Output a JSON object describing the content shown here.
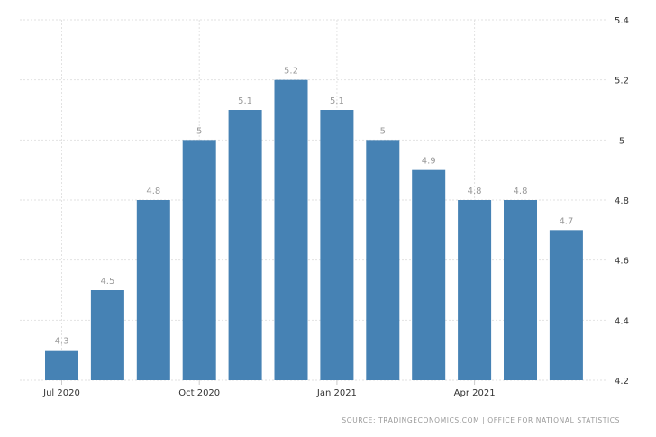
{
  "chart_data": {
    "type": "bar",
    "title": "",
    "xlabel": "",
    "ylabel": "",
    "categories": [
      "Jul 2020",
      "Aug 2020",
      "Sep 2020",
      "Oct 2020",
      "Nov 2020",
      "Dec 2020",
      "Jan 2021",
      "Feb 2021",
      "Mar 2021",
      "Apr 2021",
      "May 2021",
      "Jun 2021"
    ],
    "values": [
      4.3,
      4.5,
      4.8,
      5,
      5.1,
      5.2,
      5.1,
      5,
      4.9,
      4.8,
      4.8,
      4.7
    ],
    "data_labels": [
      "4.3",
      "4.5",
      "4.8",
      "5",
      "5.1",
      "5.2",
      "5.1",
      "5",
      "4.9",
      "4.8",
      "4.8",
      "4.7"
    ],
    "ylim": [
      4.2,
      5.4
    ],
    "yticks": [
      4.2,
      4.4,
      4.6,
      4.8,
      5,
      5.2,
      5.4
    ],
    "ytick_labels": [
      "4.2",
      "4.4",
      "4.6",
      "4.8",
      "5",
      "5.2",
      "5.4"
    ],
    "xticks": [
      {
        "index": 0,
        "label": "Jul 2020"
      },
      {
        "index": 3,
        "label": "Oct 2020"
      },
      {
        "index": 6,
        "label": "Jan 2021"
      },
      {
        "index": 9,
        "label": "Apr 2021"
      }
    ],
    "y_axis_position": "right",
    "grid": true,
    "bar_color": "#4682b4"
  },
  "source": "SOURCE: TRADINGECONOMICS.COM | OFFICE FOR NATIONAL STATISTICS"
}
